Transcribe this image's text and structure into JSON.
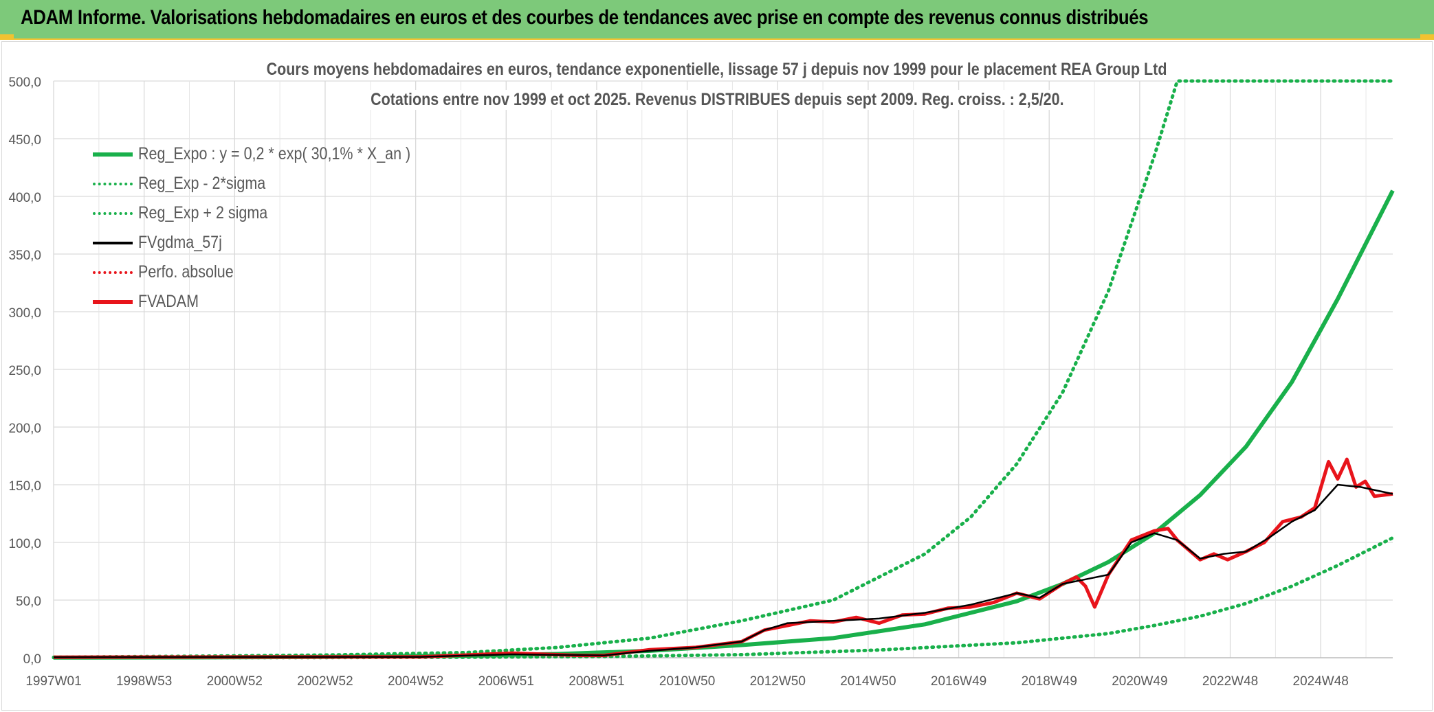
{
  "banner": {
    "title": "ADAM Informe. Valorisations hebdomadaires en euros et des courbes de tendances avec prise en compte des revenus connus distribués"
  },
  "chart_data": {
    "type": "line",
    "title": "Cours moyens hebdomadaires en euros, tendance exponentielle, lissage 57 j depuis nov 1999 pour le placement REA Group Ltd",
    "subtitle": "Cotations entre nov 1999 et oct 2025. Revenus DISTRIBUES depuis sept 2009. Reg. croiss. : 2,5/20.",
    "xlabel": "",
    "ylabel": "",
    "ylim": [
      0,
      500
    ],
    "xlim": [
      1997.0,
      2026.2
    ],
    "yticks": [
      "0,0",
      "50,0",
      "100,0",
      "150,0",
      "200,0",
      "250,0",
      "300,0",
      "350,0",
      "400,0",
      "450,0",
      "500,0"
    ],
    "xticks": [
      "1997W01",
      "1998W53",
      "2000W52",
      "2002W52",
      "2004W52",
      "2006W51",
      "2008W51",
      "2010W50",
      "2012W50",
      "2014W50",
      "2016W49",
      "2018W49",
      "2020W49",
      "2022W48",
      "2024W48"
    ],
    "grid": true,
    "legend_position": "top-left",
    "series": [
      {
        "name": "Reg_Expo : y = 0,2 * exp( 30,1% *  X_an )",
        "color": "#19b04b",
        "style": "solid",
        "x": [
          1997.0,
          2000.0,
          2003.0,
          2006.0,
          2008.0,
          2010.0,
          2012.0,
          2014.0,
          2016.0,
          2018.0,
          2019.0,
          2020.0,
          2021.0,
          2022.0,
          2023.0,
          2024.0,
          2025.0,
          2026.2
        ],
        "y": [
          0.12,
          0.3,
          0.74,
          1.8,
          3.3,
          6.0,
          11.0,
          17.0,
          29.0,
          49.0,
          64.0,
          83.0,
          108.0,
          141.0,
          183.0,
          239.0,
          311.0,
          405.0
        ]
      },
      {
        "name": "Reg_Exp - 2*sigma",
        "color": "#19b04b",
        "style": "dotted",
        "x": [
          1997.0,
          2003.0,
          2006.0,
          2009.0,
          2012.0,
          2015.0,
          2018.0,
          2020.0,
          2021.0,
          2022.0,
          2023.0,
          2024.0,
          2025.0,
          2026.2
        ],
        "y": [
          0.03,
          0.19,
          0.46,
          1.1,
          2.7,
          6.7,
          13.0,
          21.0,
          28.0,
          36.0,
          47.0,
          62.0,
          80.0,
          104.0
        ]
      },
      {
        "name": "Reg_Exp + 2 sigma",
        "color": "#19b04b",
        "style": "dotted",
        "x": [
          1997.0,
          2000.0,
          2003.0,
          2006.0,
          2008.0,
          2010.0,
          2012.0,
          2014.0,
          2016.0,
          2017.0,
          2018.0,
          2019.0,
          2020.0,
          2021.0,
          2021.5,
          2022.0,
          2026.2
        ],
        "y": [
          0.5,
          1.3,
          2.4,
          4.5,
          9.0,
          17.0,
          32.0,
          50.0,
          90.0,
          122.0,
          168.0,
          230.0,
          318.0,
          435.0,
          500.0,
          500.0,
          500.0
        ]
      },
      {
        "name": "FVgdma_57j",
        "color": "#000000",
        "style": "solid",
        "x": [
          1997.0,
          2005.0,
          2007.0,
          2009.0,
          2010.0,
          2011.0,
          2012.0,
          2012.5,
          2013.0,
          2014.0,
          2015.0,
          2016.0,
          2017.0,
          2018.0,
          2018.5,
          2019.0,
          2019.5,
          2020.0,
          2020.5,
          2021.0,
          2021.5,
          2022.0,
          2022.5,
          2023.0,
          2023.5,
          2024.0,
          2024.5,
          2025.0,
          2025.5,
          2026.2
        ],
        "y": [
          0.5,
          0.8,
          3.0,
          2.0,
          6.0,
          9.0,
          14.0,
          24.0,
          30.0,
          32.0,
          34.0,
          39.0,
          46.0,
          56.0,
          52.0,
          64.0,
          68.0,
          72.0,
          100.0,
          108.0,
          102.0,
          86.0,
          90.0,
          92.0,
          104.0,
          118.0,
          128.0,
          150.0,
          148.0,
          142.0
        ]
      },
      {
        "name": "Perfo. absolue",
        "color": "#e8141b",
        "style": "dotted",
        "x": [],
        "y": []
      },
      {
        "name": "FVADAM",
        "color": "#e8141b",
        "style": "solid",
        "x": [
          1997.0,
          2005.0,
          2007.0,
          2008.5,
          2009.0,
          2010.0,
          2011.0,
          2012.0,
          2012.5,
          2013.0,
          2013.5,
          2014.0,
          2014.5,
          2015.0,
          2015.5,
          2016.0,
          2016.5,
          2017.0,
          2017.5,
          2018.0,
          2018.5,
          2019.0,
          2019.3,
          2019.5,
          2019.7,
          2020.0,
          2020.5,
          2021.0,
          2021.3,
          2021.5,
          2022.0,
          2022.3,
          2022.6,
          2023.0,
          2023.4,
          2023.8,
          2024.2,
          2024.5,
          2024.8,
          2025.0,
          2025.2,
          2025.4,
          2025.6,
          2025.8,
          2026.2
        ],
        "y": [
          0.5,
          0.8,
          4.0,
          2.0,
          2.0,
          7.0,
          9.0,
          14.0,
          24.0,
          28.0,
          32.0,
          31.0,
          35.0,
          30.0,
          37.0,
          38.0,
          43.0,
          44.0,
          48.0,
          56.0,
          51.0,
          64.0,
          70.0,
          62.0,
          44.0,
          72.0,
          102.0,
          110.0,
          112.0,
          102.0,
          85.0,
          90.0,
          85.0,
          92.0,
          100.0,
          118.0,
          122.0,
          130.0,
          170.0,
          155.0,
          172.0,
          148.0,
          153.0,
          140.0,
          142.0
        ]
      }
    ]
  }
}
